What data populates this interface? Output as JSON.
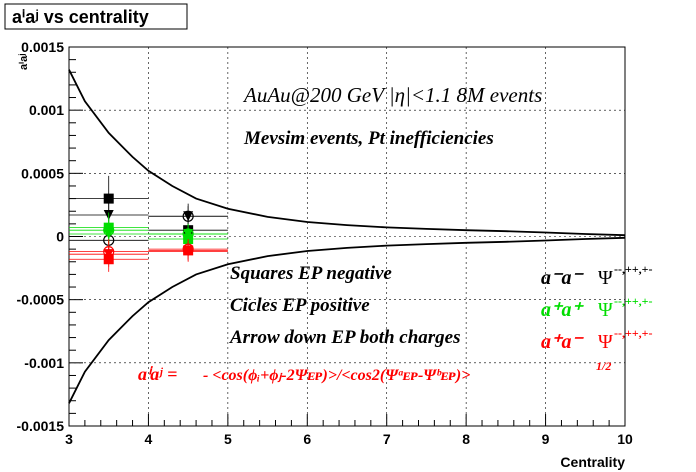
{
  "chart_data": {
    "type": "scatter",
    "title": "aⁱaʲ vs centrality",
    "xlabel": "Centrality",
    "ylabel": "aⁱaʲ",
    "xlim": [
      3,
      10
    ],
    "ylim": [
      -0.0015,
      0.0015
    ],
    "x_ticks": [
      3,
      4,
      5,
      6,
      7,
      8,
      9,
      10
    ],
    "x_tick_labels": [
      "3",
      "4",
      "5",
      "6",
      "7",
      "8",
      "9",
      "10"
    ],
    "y_ticks": [
      -0.0015,
      -0.001,
      -0.0005,
      0,
      0.0005,
      0.001,
      0.0015
    ],
    "y_tick_labels": [
      "-0.0015",
      "-0.001",
      "-0.0005",
      "0",
      "0.0005",
      "0.001",
      "0.0015"
    ],
    "grid": true,
    "envelope": {
      "x": [
        3,
        3.2,
        3.5,
        3.8,
        4,
        4.3,
        4.6,
        5,
        5.5,
        6,
        6.5,
        7,
        7.5,
        8,
        8.5,
        9,
        9.5,
        10
      ],
      "upper": [
        0.00132,
        0.00107,
        0.00082,
        0.00063,
        0.00052,
        0.0004,
        0.0003,
        0.00022,
        0.000155,
        0.000115,
        9e-05,
        7.2e-05,
        6e-05,
        5e-05,
        4.2e-05,
        3.2e-05,
        2e-05,
        1e-05
      ],
      "lower": [
        -0.00132,
        -0.00107,
        -0.00082,
        -0.00063,
        -0.00052,
        -0.0004,
        -0.0003,
        -0.00022,
        -0.000155,
        -0.000115,
        -9e-05,
        -7.2e-05,
        -6e-05,
        -5e-05,
        -4.2e-05,
        -3.2e-05,
        -2e-05,
        -1e-05
      ]
    },
    "series": [
      {
        "marker": "square",
        "color": "#000000",
        "x": [
          3.5,
          4.5
        ],
        "y": [
          0.0003,
          5e-05
        ],
        "err": [
          0.00018,
          0.0001
        ]
      },
      {
        "marker": "circle",
        "color": "#000000",
        "x": [
          3.5,
          4.5
        ],
        "y": [
          -3e-05,
          0.00016
        ],
        "err": [
          0.00012,
          0.0001
        ]
      },
      {
        "marker": "triangle-down",
        "color": "#000000",
        "x": [
          3.5,
          4.5
        ],
        "y": [
          0.00017,
          0.00016
        ],
        "err": [
          0.0001,
          8e-05
        ]
      },
      {
        "marker": "square",
        "color": "#00dd00",
        "x": [
          3.5,
          4.5
        ],
        "y": [
          7e-05,
          -2e-05
        ],
        "err": [
          0.00012,
          9e-05
        ]
      },
      {
        "marker": "circle",
        "color": "#00dd00",
        "x": [
          3.5,
          4.5
        ],
        "y": [
          5e-05,
          2e-05
        ],
        "err": [
          0.0001,
          8e-05
        ]
      },
      {
        "marker": "triangle-down",
        "color": "#00dd00",
        "x": [
          3.5,
          4.5
        ],
        "y": [
          2e-05,
          2e-05
        ],
        "err": [
          0.0001,
          8e-05
        ]
      },
      {
        "marker": "square",
        "color": "#ff0000",
        "x": [
          3.5,
          4.5
        ],
        "y": [
          -0.00018,
          -0.00011
        ],
        "err": [
          0.0001,
          8e-05
        ]
      },
      {
        "marker": "circle",
        "color": "#ff0000",
        "x": [
          3.5,
          4.5
        ],
        "y": [
          -0.00012,
          -0.0001
        ],
        "err": [
          0.0001,
          8e-05
        ]
      },
      {
        "marker": "triangle-down",
        "color": "#ff0000",
        "x": [
          3.5,
          4.5
        ],
        "y": [
          -0.00014,
          -0.00012
        ],
        "err": [
          0.0001,
          8e-05
        ]
      }
    ]
  },
  "annotations": {
    "line1": "AuAu@200 GeV |η|<1.1 8M events",
    "line2": "Mevsim events, Pt inefficiencies",
    "legend_squares": "Squares EP negative",
    "legend_circles": "Cicles EP positive",
    "legend_arrows": "Arrow down EP both charges",
    "formula_lhs": "aⁱaʲ =",
    "formula_body": "- <cos(ϕᵢ+ϕⱼ-2Ψᴇᴘ)>/<cos2(Ψᵃᴇᴘ-Ψᵇᴇᴘ)>",
    "formula_exp": "1/2"
  },
  "legend_right": [
    {
      "label": "a⁻a⁻",
      "psi": "Ψ",
      "sup": "--,++,+-",
      "color": "#000000"
    },
    {
      "label": "a⁺a⁺",
      "psi": "Ψ",
      "sup": "--,++,+-",
      "color": "#00dd00"
    },
    {
      "label": "a⁺a⁻",
      "psi": "Ψ",
      "sup": "--,++,+-",
      "color": "#ff0000"
    }
  ],
  "colors": {
    "black": "#000000",
    "green": "#00dd00",
    "red": "#ff0000",
    "grid": "#000000"
  }
}
